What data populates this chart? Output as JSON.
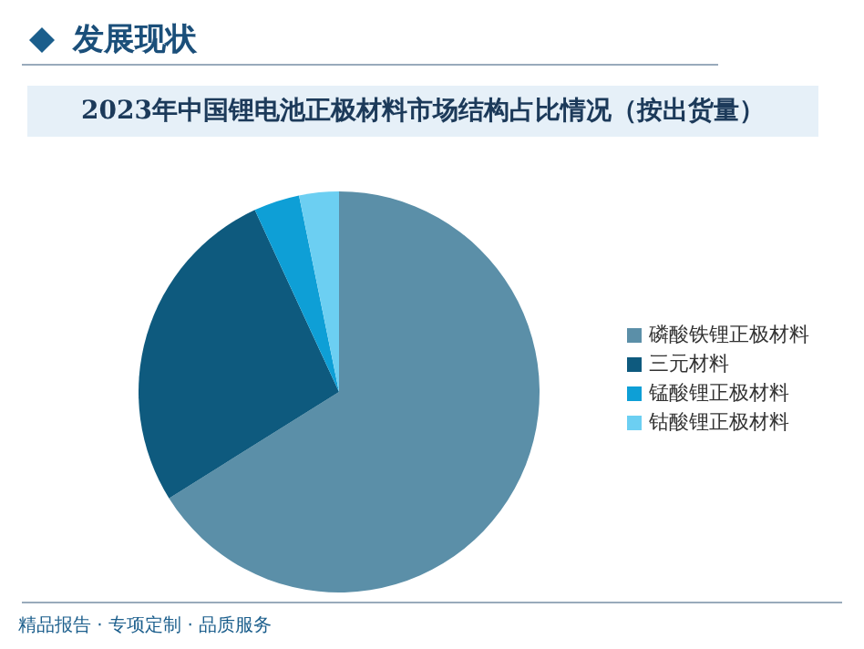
{
  "chart_data": {
    "type": "pie",
    "title": "2023年中国锂电池正极材料市场结构占比情况（按出货量）",
    "categories": [
      "磷酸铁锂正极材料",
      "三元材料",
      "锰酸锂正极材料",
      "钴酸锂正极材料"
    ],
    "values": [
      66.1,
      27.0,
      3.7,
      3.2
    ],
    "colors": [
      "#5b8fa8",
      "#0e5a7e",
      "#0e9fd6",
      "#6ccff2"
    ],
    "legend": "right",
    "annotations": [
      "发展现状",
      "精品报告 · 专项定制 · 品质服务"
    ]
  }
}
